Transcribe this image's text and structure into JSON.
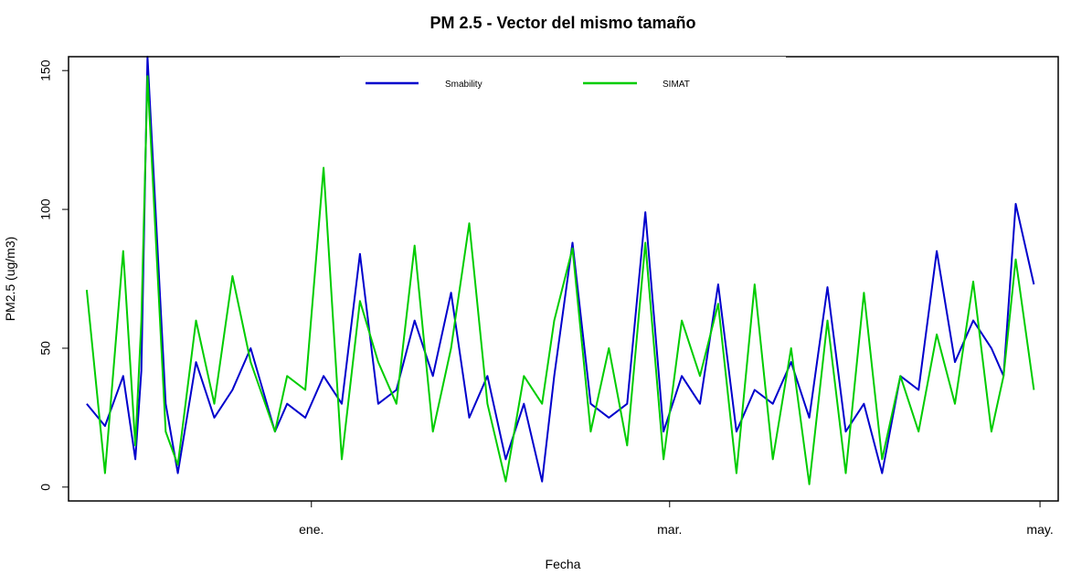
{
  "chart_data": {
    "type": "line",
    "title": "PM 2.5 -  Vector del mismo tamaño",
    "xlabel": "Fecha",
    "ylabel": "PM2.5 (ug/m3)",
    "x_range": [
      "2016-11-22",
      "2017-05-04"
    ],
    "ylim": [
      -5,
      155
    ],
    "y_ticks": [
      0,
      50,
      100,
      150
    ],
    "x_ticks": [
      {
        "date": "2017-01-01",
        "label": "ene."
      },
      {
        "date": "2017-03-01",
        "label": "mar."
      },
      {
        "date": "2017-05-01",
        "label": "may."
      }
    ],
    "grid": false,
    "legend": {
      "placement": "top-center"
    },
    "series": [
      {
        "name": "Smability",
        "color": "#0000cc",
        "x": [
          "2016-11-25",
          "2016-11-28",
          "2016-12-01",
          "2016-12-03",
          "2016-12-04",
          "2016-12-05",
          "2016-12-08",
          "2016-12-10",
          "2016-12-13",
          "2016-12-16",
          "2016-12-19",
          "2016-12-22",
          "2016-12-26",
          "2016-12-28",
          "2016-12-31",
          "2017-01-03",
          "2017-01-06",
          "2017-01-09",
          "2017-01-12",
          "2017-01-15",
          "2017-01-18",
          "2017-01-21",
          "2017-01-24",
          "2017-01-27",
          "2017-01-30",
          "2017-02-02",
          "2017-02-05",
          "2017-02-08",
          "2017-02-10",
          "2017-02-13",
          "2017-02-16",
          "2017-02-19",
          "2017-02-22",
          "2017-02-25",
          "2017-02-28",
          "2017-03-03",
          "2017-03-06",
          "2017-03-09",
          "2017-03-12",
          "2017-03-15",
          "2017-03-18",
          "2017-03-21",
          "2017-03-24",
          "2017-03-27",
          "2017-03-30",
          "2017-04-02",
          "2017-04-05",
          "2017-04-08",
          "2017-04-11",
          "2017-04-14",
          "2017-04-17",
          "2017-04-20",
          "2017-04-23",
          "2017-04-25",
          "2017-04-27",
          "2017-04-30"
        ],
        "values": [
          30,
          22,
          40,
          10,
          42,
          155,
          30,
          5,
          45,
          25,
          35,
          50,
          20,
          30,
          25,
          40,
          30,
          84,
          30,
          35,
          60,
          40,
          70,
          25,
          40,
          10,
          30,
          2,
          40,
          88,
          30,
          25,
          30,
          99,
          20,
          40,
          30,
          73,
          20,
          35,
          30,
          45,
          25,
          72,
          20,
          30,
          5,
          40,
          35,
          85,
          45,
          60,
          50,
          40,
          102,
          73
        ]
      },
      {
        "name": "SIMAT",
        "color": "#00cc00",
        "x": [
          "2016-11-25",
          "2016-11-28",
          "2016-12-01",
          "2016-12-03",
          "2016-12-04",
          "2016-12-05",
          "2016-12-08",
          "2016-12-10",
          "2016-12-13",
          "2016-12-16",
          "2016-12-19",
          "2016-12-22",
          "2016-12-26",
          "2016-12-28",
          "2016-12-31",
          "2017-01-03",
          "2017-01-06",
          "2017-01-09",
          "2017-01-12",
          "2017-01-15",
          "2017-01-18",
          "2017-01-21",
          "2017-01-24",
          "2017-01-27",
          "2017-01-30",
          "2017-02-02",
          "2017-02-05",
          "2017-02-08",
          "2017-02-10",
          "2017-02-13",
          "2017-02-16",
          "2017-02-19",
          "2017-02-22",
          "2017-02-25",
          "2017-02-28",
          "2017-03-03",
          "2017-03-06",
          "2017-03-09",
          "2017-03-12",
          "2017-03-15",
          "2017-03-18",
          "2017-03-21",
          "2017-03-24",
          "2017-03-27",
          "2017-03-30",
          "2017-04-02",
          "2017-04-05",
          "2017-04-08",
          "2017-04-11",
          "2017-04-14",
          "2017-04-17",
          "2017-04-20",
          "2017-04-23",
          "2017-04-25",
          "2017-04-27",
          "2017-04-30"
        ],
        "values": [
          71,
          5,
          85,
          15,
          60,
          148,
          20,
          8,
          60,
          30,
          76,
          45,
          20,
          40,
          35,
          115,
          10,
          67,
          45,
          30,
          87,
          20,
          50,
          95,
          30,
          2,
          40,
          30,
          60,
          86,
          20,
          50,
          15,
          88,
          10,
          60,
          40,
          66,
          5,
          73,
          10,
          50,
          1,
          60,
          5,
          70,
          10,
          40,
          20,
          55,
          30,
          74,
          20,
          40,
          82,
          35
        ]
      }
    ]
  }
}
